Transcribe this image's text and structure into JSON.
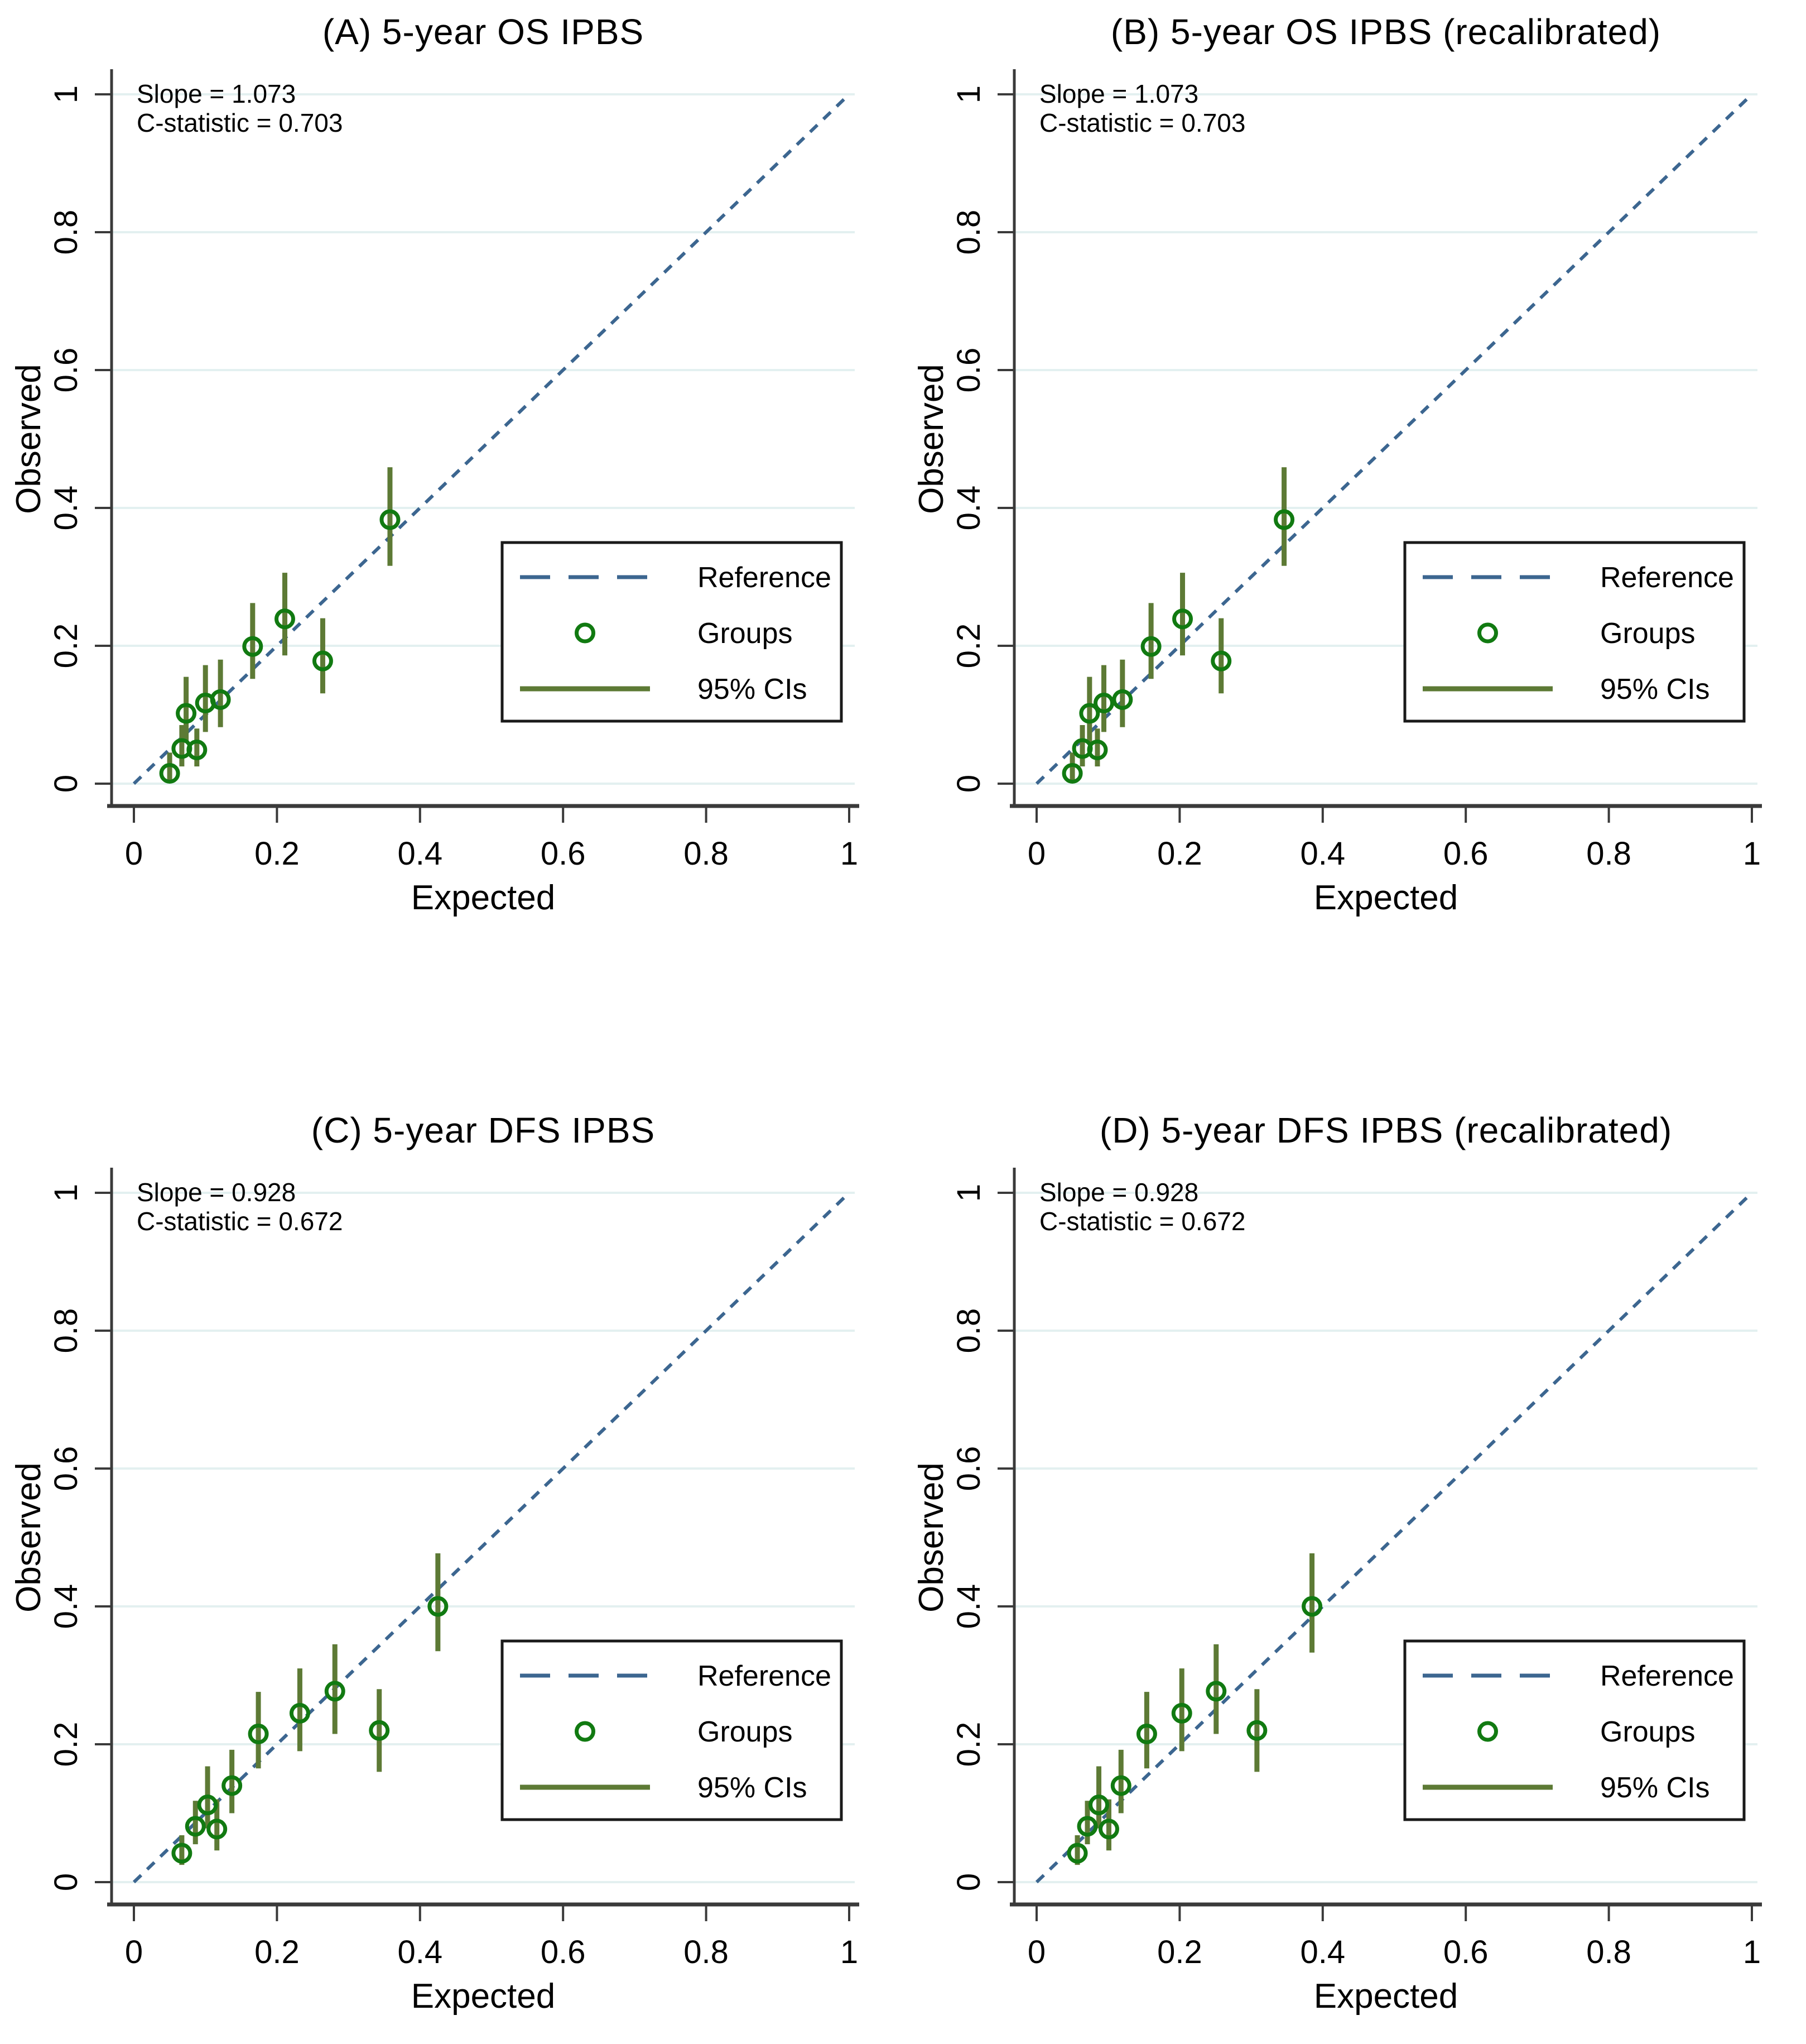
{
  "page": {
    "background": "#ffffff"
  },
  "colors": {
    "reference_line": "#3c6690",
    "group_marker": "#117a11",
    "ci_bar": "#5d7a35",
    "gridline": "#e3f0f0",
    "axis": "#3a3a3a",
    "text": "#000000",
    "legend_border": "#1a1a1a"
  },
  "axes": {
    "xlabel": "Expected",
    "ylabel": "Observed",
    "tick_values": [
      0,
      0.2,
      0.4,
      0.6,
      0.8,
      1
    ],
    "tick_labels": [
      "0",
      "0.2",
      "0.4",
      "0.6",
      "0.8",
      "1"
    ],
    "xlim": [
      0,
      1
    ],
    "ylim": [
      0,
      1
    ],
    "grid": "horizontal"
  },
  "legend": {
    "position": "lower-right",
    "items": [
      {
        "name": "reference",
        "label": "Reference"
      },
      {
        "name": "groups",
        "label": "Groups"
      },
      {
        "name": "cis",
        "label": "95% CIs"
      }
    ]
  },
  "chart_data": [
    {
      "id": "A",
      "type": "scatter",
      "title": "(A) 5-year OS IPBS",
      "annotation": {
        "slope": "Slope = 1.073",
        "cstat": "C-statistic = 0.703"
      },
      "xlabel": "Expected",
      "ylabel": "Observed",
      "xlim": [
        0,
        1
      ],
      "ylim": [
        0,
        1
      ],
      "reference_line": {
        "from": [
          0,
          0
        ],
        "to": [
          1,
          1
        ]
      },
      "points": [
        {
          "x": 0.05,
          "y": 0.015,
          "ci_low": 0.005,
          "ci_high": 0.045
        },
        {
          "x": 0.067,
          "y": 0.051,
          "ci_low": 0.025,
          "ci_high": 0.085
        },
        {
          "x": 0.073,
          "y": 0.102,
          "ci_low": 0.06,
          "ci_high": 0.155
        },
        {
          "x": 0.088,
          "y": 0.049,
          "ci_low": 0.025,
          "ci_high": 0.08
        },
        {
          "x": 0.1,
          "y": 0.117,
          "ci_low": 0.075,
          "ci_high": 0.172
        },
        {
          "x": 0.121,
          "y": 0.122,
          "ci_low": 0.082,
          "ci_high": 0.18
        },
        {
          "x": 0.166,
          "y": 0.199,
          "ci_low": 0.152,
          "ci_high": 0.262
        },
        {
          "x": 0.211,
          "y": 0.239,
          "ci_low": 0.186,
          "ci_high": 0.306
        },
        {
          "x": 0.264,
          "y": 0.178,
          "ci_low": 0.131,
          "ci_high": 0.24
        },
        {
          "x": 0.358,
          "y": 0.383,
          "ci_low": 0.316,
          "ci_high": 0.459
        }
      ]
    },
    {
      "id": "B",
      "type": "scatter",
      "title": "(B) 5-year OS IPBS (recalibrated)",
      "annotation": {
        "slope": "Slope = 1.073",
        "cstat": "C-statistic = 0.703"
      },
      "xlabel": "Expected",
      "ylabel": "Observed",
      "xlim": [
        0,
        1
      ],
      "ylim": [
        0,
        1
      ],
      "reference_line": {
        "from": [
          0,
          0
        ],
        "to": [
          1,
          1
        ]
      },
      "points": [
        {
          "x": 0.05,
          "y": 0.015,
          "ci_low": 0.005,
          "ci_high": 0.045
        },
        {
          "x": 0.064,
          "y": 0.051,
          "ci_low": 0.025,
          "ci_high": 0.085
        },
        {
          "x": 0.074,
          "y": 0.102,
          "ci_low": 0.06,
          "ci_high": 0.155
        },
        {
          "x": 0.085,
          "y": 0.049,
          "ci_low": 0.025,
          "ci_high": 0.08
        },
        {
          "x": 0.094,
          "y": 0.117,
          "ci_low": 0.075,
          "ci_high": 0.172
        },
        {
          "x": 0.12,
          "y": 0.122,
          "ci_low": 0.082,
          "ci_high": 0.18
        },
        {
          "x": 0.16,
          "y": 0.199,
          "ci_low": 0.152,
          "ci_high": 0.262
        },
        {
          "x": 0.204,
          "y": 0.239,
          "ci_low": 0.186,
          "ci_high": 0.306
        },
        {
          "x": 0.258,
          "y": 0.178,
          "ci_low": 0.131,
          "ci_high": 0.24
        },
        {
          "x": 0.346,
          "y": 0.383,
          "ci_low": 0.316,
          "ci_high": 0.459
        }
      ]
    },
    {
      "id": "C",
      "type": "scatter",
      "title": "(C) 5-year DFS IPBS",
      "annotation": {
        "slope": "Slope = 0.928",
        "cstat": "C-statistic = 0.672"
      },
      "xlabel": "Expected",
      "ylabel": "Observed",
      "xlim": [
        0,
        1
      ],
      "ylim": [
        0,
        1
      ],
      "reference_line": {
        "from": [
          0,
          0
        ],
        "to": [
          1,
          1
        ]
      },
      "points": [
        {
          "x": 0.067,
          "y": 0.042,
          "ci_low": 0.025,
          "ci_high": 0.068
        },
        {
          "x": 0.086,
          "y": 0.081,
          "ci_low": 0.055,
          "ci_high": 0.118
        },
        {
          "x": 0.103,
          "y": 0.112,
          "ci_low": 0.078,
          "ci_high": 0.168
        },
        {
          "x": 0.116,
          "y": 0.077,
          "ci_low": 0.046,
          "ci_high": 0.12
        },
        {
          "x": 0.137,
          "y": 0.14,
          "ci_low": 0.1,
          "ci_high": 0.192
        },
        {
          "x": 0.174,
          "y": 0.215,
          "ci_low": 0.165,
          "ci_high": 0.276
        },
        {
          "x": 0.232,
          "y": 0.245,
          "ci_low": 0.19,
          "ci_high": 0.31
        },
        {
          "x": 0.281,
          "y": 0.277,
          "ci_low": 0.215,
          "ci_high": 0.345
        },
        {
          "x": 0.343,
          "y": 0.22,
          "ci_low": 0.16,
          "ci_high": 0.28
        },
        {
          "x": 0.425,
          "y": 0.4,
          "ci_low": 0.335,
          "ci_high": 0.477
        }
      ]
    },
    {
      "id": "D",
      "type": "scatter",
      "title": "(D) 5-year DFS IPBS (recalibrated)",
      "annotation": {
        "slope": "Slope = 0.928",
        "cstat": "C-statistic = 0.672"
      },
      "xlabel": "Expected",
      "ylabel": "Observed",
      "xlim": [
        0,
        1
      ],
      "ylim": [
        0,
        1
      ],
      "reference_line": {
        "from": [
          0,
          0
        ],
        "to": [
          1,
          1
        ]
      },
      "points": [
        {
          "x": 0.057,
          "y": 0.042,
          "ci_low": 0.025,
          "ci_high": 0.068
        },
        {
          "x": 0.071,
          "y": 0.081,
          "ci_low": 0.055,
          "ci_high": 0.118
        },
        {
          "x": 0.087,
          "y": 0.112,
          "ci_low": 0.078,
          "ci_high": 0.168
        },
        {
          "x": 0.101,
          "y": 0.077,
          "ci_low": 0.046,
          "ci_high": 0.12
        },
        {
          "x": 0.118,
          "y": 0.14,
          "ci_low": 0.1,
          "ci_high": 0.192
        },
        {
          "x": 0.154,
          "y": 0.215,
          "ci_low": 0.165,
          "ci_high": 0.276
        },
        {
          "x": 0.203,
          "y": 0.245,
          "ci_low": 0.19,
          "ci_high": 0.31
        },
        {
          "x": 0.251,
          "y": 0.277,
          "ci_low": 0.215,
          "ci_high": 0.345
        },
        {
          "x": 0.308,
          "y": 0.22,
          "ci_low": 0.16,
          "ci_high": 0.28
        },
        {
          "x": 0.385,
          "y": 0.4,
          "ci_low": 0.333,
          "ci_high": 0.477
        }
      ]
    }
  ]
}
